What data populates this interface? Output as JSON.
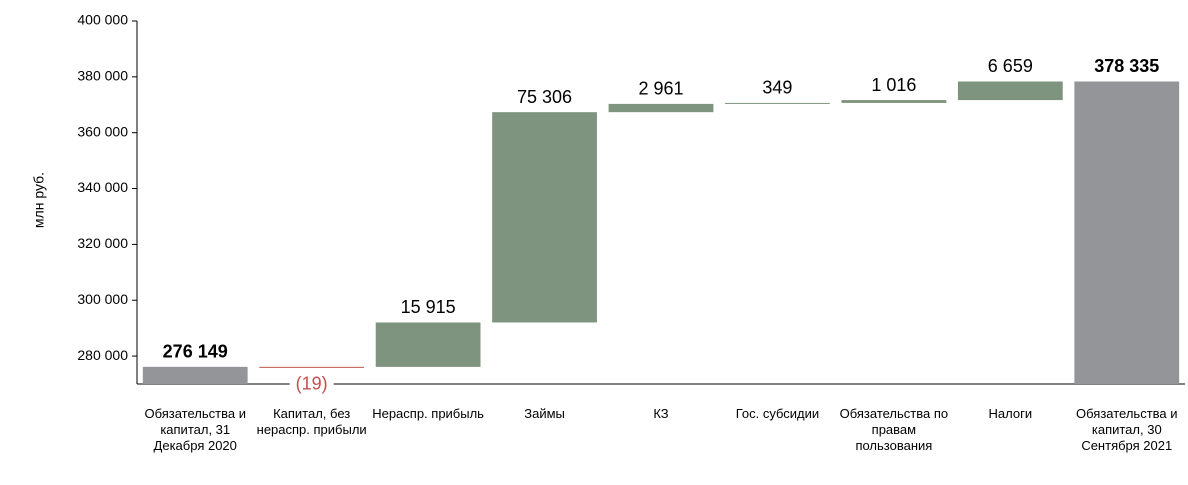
{
  "chart_data": {
    "type": "waterfall",
    "y_label": "млн руб.",
    "categories": [
      "Обязательства и капитал, 31 Декабря 2020",
      "Капитал, без нераспр. прибыли",
      "Нераспр. прибыль",
      "Займы",
      "КЗ",
      "Гос. субсидии",
      "Обязательства по правам пользования",
      "Налоги",
      "Обязательства и капитал, 30 Сентября 2021"
    ],
    "values": [
      276149,
      -19,
      15915,
      75306,
      2961,
      349,
      1016,
      6659,
      378335
    ],
    "value_labels": [
      "276 149",
      "(19)",
      "15 915",
      "75 306",
      "2 961",
      "349",
      "1 016",
      "6 659",
      "378 335"
    ],
    "is_total": [
      true,
      false,
      false,
      false,
      false,
      false,
      false,
      false,
      true
    ],
    "colors": {
      "total": "#939598",
      "increase": "#7f947e",
      "decrease": "#c0504d"
    },
    "ylim": [
      270000,
      400000
    ],
    "yticks": [
      {
        "value": 280000,
        "label": "280 000"
      },
      {
        "value": 300000,
        "label": "300 000"
      },
      {
        "value": 320000,
        "label": "320 000"
      },
      {
        "value": 340000,
        "label": "340 000"
      },
      {
        "value": 360000,
        "label": "360 000"
      },
      {
        "value": 380000,
        "label": "380 000"
      },
      {
        "value": 400000,
        "label": "400 000"
      }
    ],
    "grid": false
  }
}
